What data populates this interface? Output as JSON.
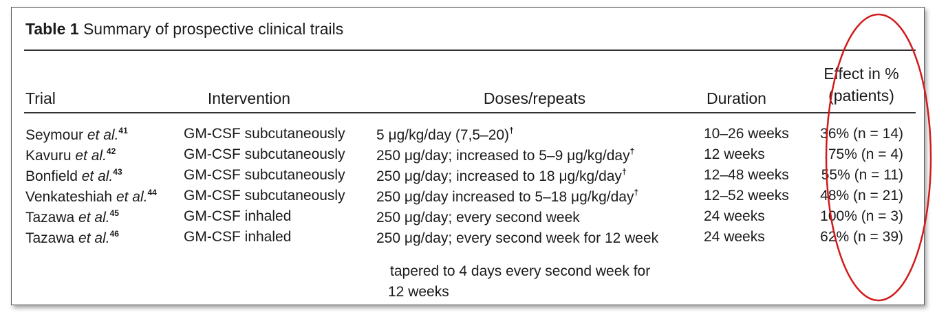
{
  "table": {
    "caption_label": "Table 1",
    "caption_text": "Summary of prospective clinical trails",
    "headers": {
      "trial": "Trial",
      "intervention": "Intervention",
      "doses": "Doses/repeats",
      "duration": "Duration",
      "effect_line1": "Effect in %",
      "effect_line2": "(patients)"
    },
    "rows": [
      {
        "author": "Seymour",
        "etal": "et al.",
        "ref": "41",
        "intervention": "GM-CSF subcutaneously",
        "dose": "5 μg/kg/day (7,5–20)",
        "dose_mark": "†",
        "duration": "10–26 weeks",
        "effect": "36% (n = 14)"
      },
      {
        "author": "Kavuru",
        "etal": "et al.",
        "ref": "42",
        "intervention": "GM-CSF subcutaneously",
        "dose": "250 μg/day; increased to 5–9 μg/kg/day",
        "dose_mark": "†",
        "duration": "12 weeks",
        "effect": "75% (n = 4)"
      },
      {
        "author": "Bonfield",
        "etal": "et al.",
        "ref": "43",
        "intervention": "GM-CSF subcutaneously",
        "dose": "250 μg/day; increased to 18 μg/kg/day",
        "dose_mark": "†",
        "duration": "12–48 weeks",
        "effect": "55% (n = 11)"
      },
      {
        "author": "Venkateshiah",
        "etal": "et al.",
        "ref": "44",
        "intervention": "GM-CSF subcutaneously",
        "dose": "250 μg/day increased to 5–18 μg/kg/day",
        "dose_mark": "†",
        "duration": "12–52 weeks",
        "effect": "48% (n = 21)"
      },
      {
        "author": "Tazawa",
        "etal": "et al.",
        "ref": "45",
        "intervention": "GM-CSF inhaled",
        "dose": "250 μg/day; every second week",
        "dose_mark": "",
        "duration": "24 weeks",
        "effect": "100% (n = 3)"
      },
      {
        "author": "Tazawa",
        "etal": "et al.",
        "ref": "46",
        "intervention": "GM-CSF inhaled",
        "dose": "250 μg/day; every second week for 12 week",
        "dose_mark": "",
        "duration": "24 weeks",
        "effect": "62% (n = 39)"
      }
    ],
    "last_row_dose_cont1": "tapered to 4 days every second week for",
    "last_row_dose_cont2": "12 weeks"
  },
  "annotation": {
    "shape": "ellipse",
    "color": "#d11a1a"
  }
}
